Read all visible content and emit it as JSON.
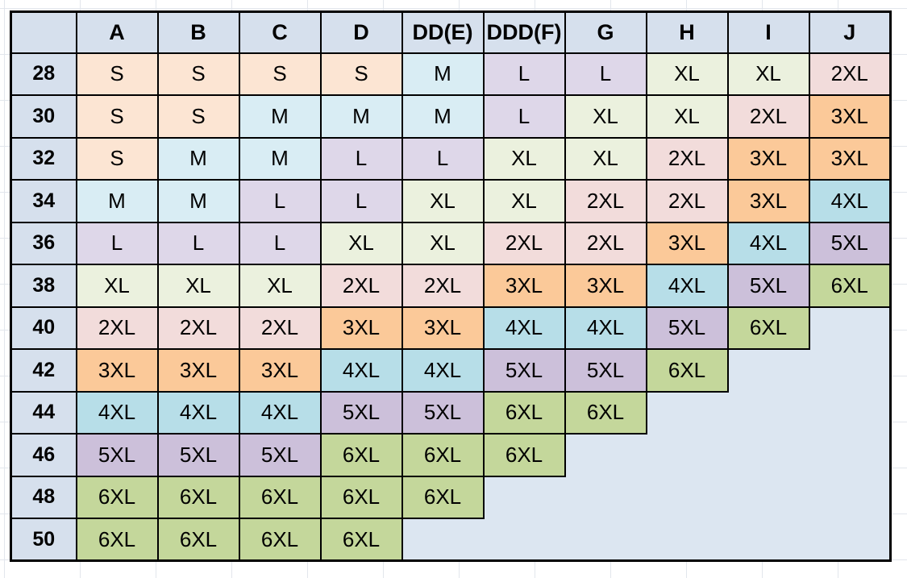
{
  "table": {
    "corner_label": "",
    "columns": [
      "A",
      "B",
      "C",
      "D",
      "DD(E)",
      "DDD(F)",
      "G",
      "H",
      "I",
      "J"
    ],
    "rows": [
      {
        "band": "28",
        "cells": [
          "S",
          "S",
          "S",
          "S",
          "M",
          "L",
          "L",
          "XL",
          "XL",
          "2XL"
        ]
      },
      {
        "band": "30",
        "cells": [
          "S",
          "S",
          "M",
          "M",
          "M",
          "L",
          "XL",
          "XL",
          "2XL",
          "3XL"
        ]
      },
      {
        "band": "32",
        "cells": [
          "S",
          "M",
          "M",
          "L",
          "L",
          "XL",
          "XL",
          "2XL",
          "3XL",
          "3XL"
        ]
      },
      {
        "band": "34",
        "cells": [
          "M",
          "M",
          "L",
          "L",
          "XL",
          "XL",
          "2XL",
          "2XL",
          "3XL",
          "4XL"
        ]
      },
      {
        "band": "36",
        "cells": [
          "L",
          "L",
          "L",
          "XL",
          "XL",
          "2XL",
          "2XL",
          "3XL",
          "4XL",
          "5XL"
        ]
      },
      {
        "band": "38",
        "cells": [
          "XL",
          "XL",
          "XL",
          "2XL",
          "2XL",
          "3XL",
          "3XL",
          "4XL",
          "5XL",
          "6XL"
        ]
      },
      {
        "band": "40",
        "cells": [
          "2XL",
          "2XL",
          "2XL",
          "3XL",
          "3XL",
          "4XL",
          "4XL",
          "5XL",
          "6XL",
          ""
        ]
      },
      {
        "band": "42",
        "cells": [
          "3XL",
          "3XL",
          "3XL",
          "4XL",
          "4XL",
          "5XL",
          "5XL",
          "6XL",
          "",
          ""
        ]
      },
      {
        "band": "44",
        "cells": [
          "4XL",
          "4XL",
          "4XL",
          "5XL",
          "5XL",
          "6XL",
          "6XL",
          "",
          "",
          ""
        ]
      },
      {
        "band": "46",
        "cells": [
          "5XL",
          "5XL",
          "5XL",
          "6XL",
          "6XL",
          "6XL",
          "",
          "",
          "",
          ""
        ]
      },
      {
        "band": "48",
        "cells": [
          "6XL",
          "6XL",
          "6XL",
          "6XL",
          "6XL",
          "",
          "",
          "",
          "",
          ""
        ]
      },
      {
        "band": "50",
        "cells": [
          "6XL",
          "6XL",
          "6XL",
          "6XL",
          "",
          "",
          "",
          "",
          "",
          ""
        ]
      }
    ],
    "size_colors": {
      "S": "#fce5d3",
      "M": "#d9edf4",
      "L": "#ded7e9",
      "XL": "#ebf1de",
      "2XL": "#f2dcdb",
      "3XL": "#fbc999",
      "4XL": "#b7dee8",
      "5XL": "#ccc0da",
      "6XL": "#c4d79b"
    },
    "header_bg": "#d6e0ed",
    "empty_bg": "#dce6f1",
    "border_color": "#000000"
  }
}
